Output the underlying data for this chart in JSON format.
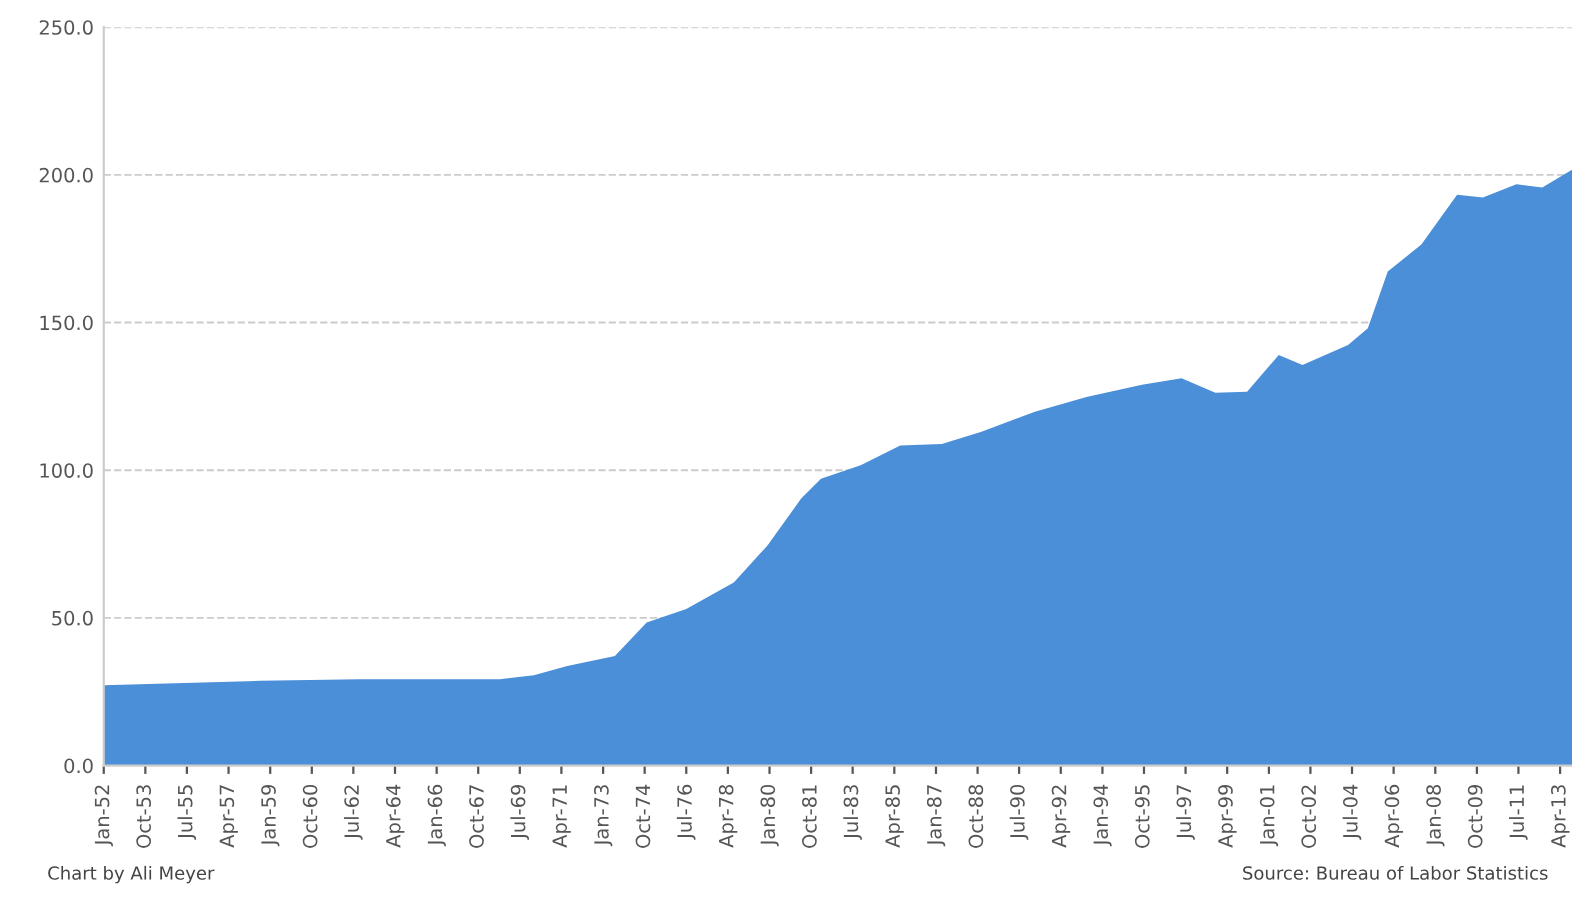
{
  "chart_data": {
    "type": "area",
    "color": "#4a8fd8",
    "x": [
      "1952-01",
      "1958-08",
      "1962-10",
      "1968-09",
      "1970-02",
      "1971-07",
      "1973-07",
      "1974-11",
      "1976-07",
      "1978-07",
      "1979-12",
      "1981-05",
      "1982-03",
      "1983-11",
      "1985-07",
      "1987-04",
      "1988-12",
      "1991-03",
      "1993-05",
      "1995-09",
      "1997-05",
      "1998-10",
      "2000-02",
      "2001-06",
      "2002-06",
      "2004-05",
      "2005-03",
      "2006-01",
      "2007-06",
      "2008-12",
      "2010-01",
      "2011-06",
      "2012-07",
      "2013-10"
    ],
    "values": [
      27.2,
      28.7,
      29.2,
      29.2,
      30.6,
      33.7,
      37.1,
      48.4,
      53,
      62,
      74.5,
      90.4,
      97.1,
      101.7,
      108.4,
      108.9,
      113,
      119.8,
      124.8,
      128.9,
      131.1,
      126.2,
      126.6,
      139,
      135.6,
      142.4,
      148.1,
      167.3,
      176.4,
      193.3,
      192.3,
      196.8,
      195.7,
      201.7
    ],
    "xlim": [
      "1952-01",
      "2013-10"
    ],
    "ylim": [
      0,
      250
    ],
    "yticks": [
      {
        "value": 0,
        "label": "0.0"
      },
      {
        "value": 50,
        "label": "50.0"
      },
      {
        "value": 100,
        "label": "100.0"
      },
      {
        "value": 150,
        "label": "150.0"
      },
      {
        "value": 200,
        "label": "200.0"
      },
      {
        "value": 250,
        "label": "250.0"
      }
    ],
    "xticks": [
      {
        "value": "1952-01",
        "label": "Jan-52"
      },
      {
        "value": "1953-10",
        "label": "Oct-53"
      },
      {
        "value": "1955-07",
        "label": "Jul-55"
      },
      {
        "value": "1957-04",
        "label": "Apr-57"
      },
      {
        "value": "1959-01",
        "label": "Jan-59"
      },
      {
        "value": "1960-10",
        "label": "Oct-60"
      },
      {
        "value": "1962-07",
        "label": "Jul-62"
      },
      {
        "value": "1964-04",
        "label": "Apr-64"
      },
      {
        "value": "1966-01",
        "label": "Jan-66"
      },
      {
        "value": "1967-10",
        "label": "Oct-67"
      },
      {
        "value": "1969-07",
        "label": "Jul-69"
      },
      {
        "value": "1971-04",
        "label": "Apr-71"
      },
      {
        "value": "1973-01",
        "label": "Jan-73"
      },
      {
        "value": "1974-10",
        "label": "Oct-74"
      },
      {
        "value": "1976-07",
        "label": "Jul-76"
      },
      {
        "value": "1978-04",
        "label": "Apr-78"
      },
      {
        "value": "1980-01",
        "label": "Jan-80"
      },
      {
        "value": "1981-10",
        "label": "Oct-81"
      },
      {
        "value": "1983-07",
        "label": "Jul-83"
      },
      {
        "value": "1985-04",
        "label": "Apr-85"
      },
      {
        "value": "1987-01",
        "label": "Jan-87"
      },
      {
        "value": "1988-10",
        "label": "Oct-88"
      },
      {
        "value": "1990-07",
        "label": "Jul-90"
      },
      {
        "value": "1992-04",
        "label": "Apr-92"
      },
      {
        "value": "1994-01",
        "label": "Jan-94"
      },
      {
        "value": "1995-10",
        "label": "Oct-95"
      },
      {
        "value": "1997-07",
        "label": "Jul-97"
      },
      {
        "value": "1999-04",
        "label": "Apr-99"
      },
      {
        "value": "2001-01",
        "label": "Jan-01"
      },
      {
        "value": "2002-10",
        "label": "Oct-02"
      },
      {
        "value": "2004-07",
        "label": "Jul-04"
      },
      {
        "value": "2006-04",
        "label": "Apr-06"
      },
      {
        "value": "2008-01",
        "label": "Jan-08"
      },
      {
        "value": "2009-10",
        "label": "Oct-09"
      },
      {
        "value": "2011-07",
        "label": "Jul-11"
      },
      {
        "value": "2013-04",
        "label": "Apr-13"
      }
    ],
    "grid": "y",
    "annotations": [
      "Chart by Ali Meyer",
      "Source: Bureau of Labor Statistics"
    ]
  }
}
